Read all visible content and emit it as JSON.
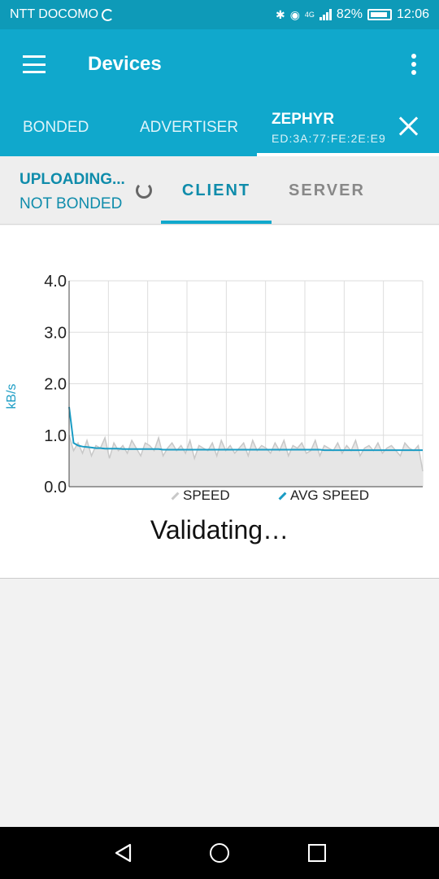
{
  "status_bar": {
    "carrier": "NTT DOCOMO",
    "network_tag": "4G",
    "battery": "82%",
    "time": "12:06",
    "icons": [
      "sync-icon",
      "bluetooth-icon",
      "eye-icon",
      "signal-icon",
      "battery-icon"
    ]
  },
  "app_bar": {
    "title": "Devices",
    "icons": [
      "menu-icon",
      "more-vert-icon"
    ]
  },
  "top_tabs": {
    "bonded": "BONDED",
    "advertiser": "ADVERTISER",
    "zephyr_name": "ZEPHYR",
    "zephyr_address": "ED:3A:77:FE:2E:E9"
  },
  "sub_bar": {
    "upload_state": "UPLOADING...",
    "bond_state": "NOT BONDED",
    "client_tab": "CLIENT",
    "server_tab": "SERVER"
  },
  "chart_data": {
    "type": "area",
    "ylabel": "kB/s",
    "xlabel": "",
    "ylim": [
      0,
      4
    ],
    "yticks": [
      "4.0",
      "3.0",
      "2.0",
      "1.0",
      "0.0"
    ],
    "grid": true,
    "legend_position": "bottom",
    "series": [
      {
        "name": "SPEED",
        "color": "#c8c8c8",
        "values": [
          1.0,
          0.7,
          0.85,
          0.65,
          0.9,
          0.6,
          0.8,
          0.75,
          0.95,
          0.55,
          0.85,
          0.7,
          0.8,
          0.65,
          0.9,
          0.75,
          0.6,
          0.85,
          0.8,
          0.7,
          0.95,
          0.6,
          0.75,
          0.85,
          0.7,
          0.8,
          0.65,
          0.9,
          0.55,
          0.8,
          0.75,
          0.7,
          0.85,
          0.6,
          0.9,
          0.7,
          0.8,
          0.65,
          0.75,
          0.85,
          0.6,
          0.9,
          0.7,
          0.8,
          0.75,
          0.65,
          0.85,
          0.7,
          0.9,
          0.6,
          0.8,
          0.75,
          0.85,
          0.65,
          0.7,
          0.9,
          0.6,
          0.8,
          0.75,
          0.7,
          0.85,
          0.65,
          0.8,
          0.7,
          0.9,
          0.6,
          0.75,
          0.8,
          0.7,
          0.85,
          0.65,
          0.75,
          0.8,
          0.7,
          0.6,
          0.85,
          0.75,
          0.7,
          0.8,
          0.3
        ]
      },
      {
        "name": "AVG SPEED",
        "color": "#1a9cc4",
        "values": [
          1.55,
          0.85,
          0.8,
          0.78,
          0.77,
          0.76,
          0.75,
          0.75,
          0.74,
          0.74,
          0.74,
          0.74,
          0.73,
          0.73,
          0.73,
          0.73,
          0.73,
          0.73,
          0.73,
          0.73,
          0.73,
          0.72,
          0.72,
          0.72,
          0.72,
          0.72,
          0.72,
          0.72,
          0.72,
          0.72,
          0.72,
          0.72,
          0.72,
          0.72,
          0.72,
          0.72,
          0.72,
          0.72,
          0.72,
          0.72,
          0.72,
          0.72,
          0.72,
          0.72,
          0.72,
          0.72,
          0.72,
          0.72,
          0.72,
          0.72,
          0.72,
          0.72,
          0.72,
          0.72,
          0.72,
          0.72,
          0.72,
          0.71,
          0.71,
          0.71,
          0.71,
          0.71,
          0.71,
          0.71,
          0.71,
          0.71,
          0.71,
          0.71,
          0.71,
          0.71,
          0.71,
          0.71,
          0.71,
          0.71,
          0.71,
          0.71,
          0.71,
          0.71,
          0.71,
          0.71
        ]
      }
    ]
  },
  "progress_text": "Validating…",
  "nav_bar": {
    "icons": [
      "back-icon",
      "home-icon",
      "recent-apps-icon"
    ]
  }
}
